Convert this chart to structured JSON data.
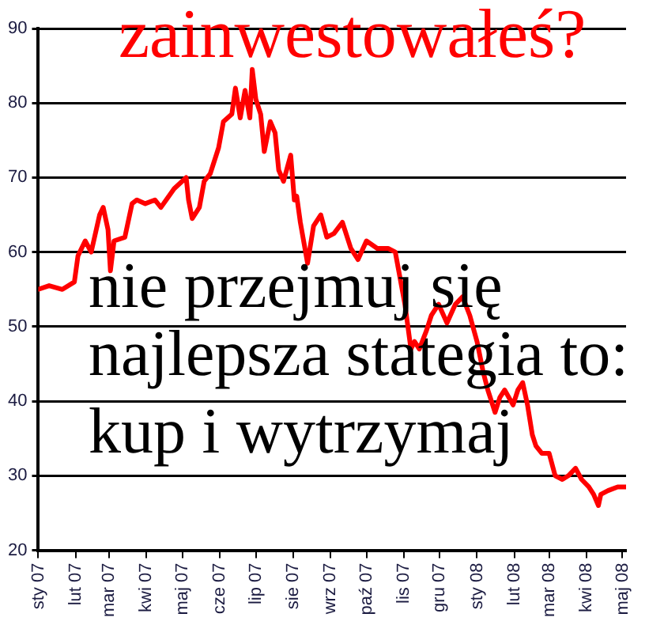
{
  "chart_data": {
    "type": "line",
    "title": "zainwestowałeś?",
    "annotations": [
      "nie przejmuj się",
      "najlepsza stategia to:",
      "kup i wytrzymaj"
    ],
    "series": [
      {
        "color": "#ff0000",
        "x": [
          "2007-01-01",
          "2007-01-10",
          "2007-01-21",
          "2007-01-31",
          "2007-02-03",
          "2007-02-09",
          "2007-02-14",
          "2007-02-21",
          "2007-02-24",
          "2007-02-28",
          "2007-03-02",
          "2007-03-05",
          "2007-03-14",
          "2007-03-20",
          "2007-03-24",
          "2007-03-31",
          "2007-04-08",
          "2007-04-13",
          "2007-04-24",
          "2007-05-04",
          "2007-05-06",
          "2007-05-09",
          "2007-05-15",
          "2007-05-19",
          "2007-05-24",
          "2007-05-31",
          "2007-06-04",
          "2007-06-11",
          "2007-06-14",
          "2007-06-18",
          "2007-06-22",
          "2007-06-26",
          "2007-06-28",
          "2007-07-01",
          "2007-07-05",
          "2007-07-08",
          "2007-07-13",
          "2007-07-17",
          "2007-07-20",
          "2007-07-24",
          "2007-07-30",
          "2007-08-02",
          "2007-08-04",
          "2007-08-07",
          "2007-08-13",
          "2007-08-16",
          "2007-08-18",
          "2007-08-24",
          "2007-08-29",
          "2007-09-04",
          "2007-09-11",
          "2007-09-18",
          "2007-09-24",
          "2007-10-01",
          "2007-10-10",
          "2007-10-19",
          "2007-10-25",
          "2007-11-02",
          "2007-11-07",
          "2007-11-10",
          "2007-11-14",
          "2007-11-20",
          "2007-11-24",
          "2007-11-30",
          "2007-12-07",
          "2007-12-14",
          "2007-12-20",
          "2007-12-26",
          "2008-01-01",
          "2008-01-06",
          "2008-01-10",
          "2008-01-16",
          "2008-01-20",
          "2008-01-24",
          "2008-01-31",
          "2008-02-04",
          "2008-02-08",
          "2008-02-12",
          "2008-02-16",
          "2008-02-19",
          "2008-02-24",
          "2008-03-01",
          "2008-03-06",
          "2008-03-12",
          "2008-03-17",
          "2008-03-23",
          "2008-03-28",
          "2008-04-03",
          "2008-04-07",
          "2008-04-11",
          "2008-04-13",
          "2008-04-19",
          "2008-04-27",
          "2008-05-04"
        ],
        "values": [
          55,
          55.5,
          55,
          56,
          59.5,
          61.5,
          60,
          65,
          66,
          63,
          57.5,
          61.5,
          62,
          66.5,
          67,
          66.5,
          67,
          66,
          68.5,
          70,
          67,
          64.5,
          66,
          69.5,
          70.5,
          74,
          77.5,
          78.5,
          82,
          78,
          81.7,
          78,
          84.5,
          80.5,
          78.5,
          73.5,
          77.5,
          76,
          71,
          69.5,
          73,
          67,
          67.5,
          64,
          58.5,
          61.5,
          63.5,
          65,
          62,
          62.5,
          64,
          60.5,
          59,
          61.5,
          60.5,
          60.5,
          60,
          53,
          47,
          48,
          47,
          49.5,
          51.5,
          53,
          50.5,
          53,
          54,
          51.5,
          48,
          44,
          41.5,
          38.5,
          40.5,
          41.5,
          39.5,
          41.5,
          42.5,
          39.5,
          35.5,
          34,
          33,
          33,
          30,
          29.5,
          30,
          31,
          29.5,
          28.5,
          27.5,
          26,
          27.5,
          28,
          28.5,
          28.5
        ]
      }
    ],
    "xlim": [
      "2007-01-01",
      "2008-05-04"
    ],
    "xticks": [
      {
        "value": "2007-01",
        "label": "sty 07"
      },
      {
        "value": "2007-02",
        "label": "lut 07"
      },
      {
        "value": "2007-03",
        "label": "mar 07"
      },
      {
        "value": "2007-04",
        "label": "kwi 07"
      },
      {
        "value": "2007-05",
        "label": "maj 07"
      },
      {
        "value": "2007-06",
        "label": "cze 07"
      },
      {
        "value": "2007-07",
        "label": "lip 07"
      },
      {
        "value": "2007-08",
        "label": "sie 07"
      },
      {
        "value": "2007-09",
        "label": "wrz 07"
      },
      {
        "value": "2007-10",
        "label": "paź 07"
      },
      {
        "value": "2007-11",
        "label": "lis 07"
      },
      {
        "value": "2007-12",
        "label": "gru 07"
      },
      {
        "value": "2008-01",
        "label": "sty 08"
      },
      {
        "value": "2008-02",
        "label": "lut 08"
      },
      {
        "value": "2008-03",
        "label": "mar 08"
      },
      {
        "value": "2008-04",
        "label": "kwi 08"
      },
      {
        "value": "2008-05",
        "label": "maj 08"
      }
    ],
    "ylim": [
      20,
      90
    ],
    "yticks": [
      20,
      30,
      40,
      50,
      60,
      70,
      80,
      90
    ],
    "grid": "y",
    "legend": false,
    "marker": "none",
    "line_style": "solid"
  }
}
